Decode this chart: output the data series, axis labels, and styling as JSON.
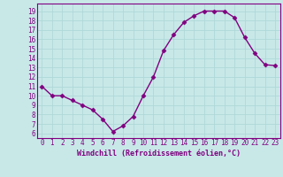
{
  "x": [
    0,
    1,
    2,
    3,
    4,
    5,
    6,
    7,
    8,
    9,
    10,
    11,
    12,
    13,
    14,
    15,
    16,
    17,
    18,
    19,
    20,
    21,
    22,
    23
  ],
  "y": [
    11,
    10,
    10,
    9.5,
    9,
    8.5,
    7.5,
    6.2,
    6.8,
    7.8,
    10,
    12,
    14.8,
    16.5,
    17.8,
    18.5,
    19,
    19,
    19,
    18.3,
    16.2,
    14.5,
    13.3,
    13.2
  ],
  "line_color": "#800080",
  "bg_color": "#c8e8e8",
  "grid_color": "#b0d8d8",
  "xlabel": "Windchill (Refroidissement éolien,°C)",
  "yticks": [
    6,
    7,
    8,
    9,
    10,
    11,
    12,
    13,
    14,
    15,
    16,
    17,
    18,
    19
  ],
  "ylim": [
    5.5,
    19.8
  ],
  "xlim": [
    -0.5,
    23.5
  ],
  "xticks": [
    0,
    1,
    2,
    3,
    4,
    5,
    6,
    7,
    8,
    9,
    10,
    11,
    12,
    13,
    14,
    15,
    16,
    17,
    18,
    19,
    20,
    21,
    22,
    23
  ],
  "marker": "D",
  "marker_size": 2.5,
  "line_width": 1.0,
  "tick_fontsize": 5.5,
  "xlabel_fontsize": 6.0
}
